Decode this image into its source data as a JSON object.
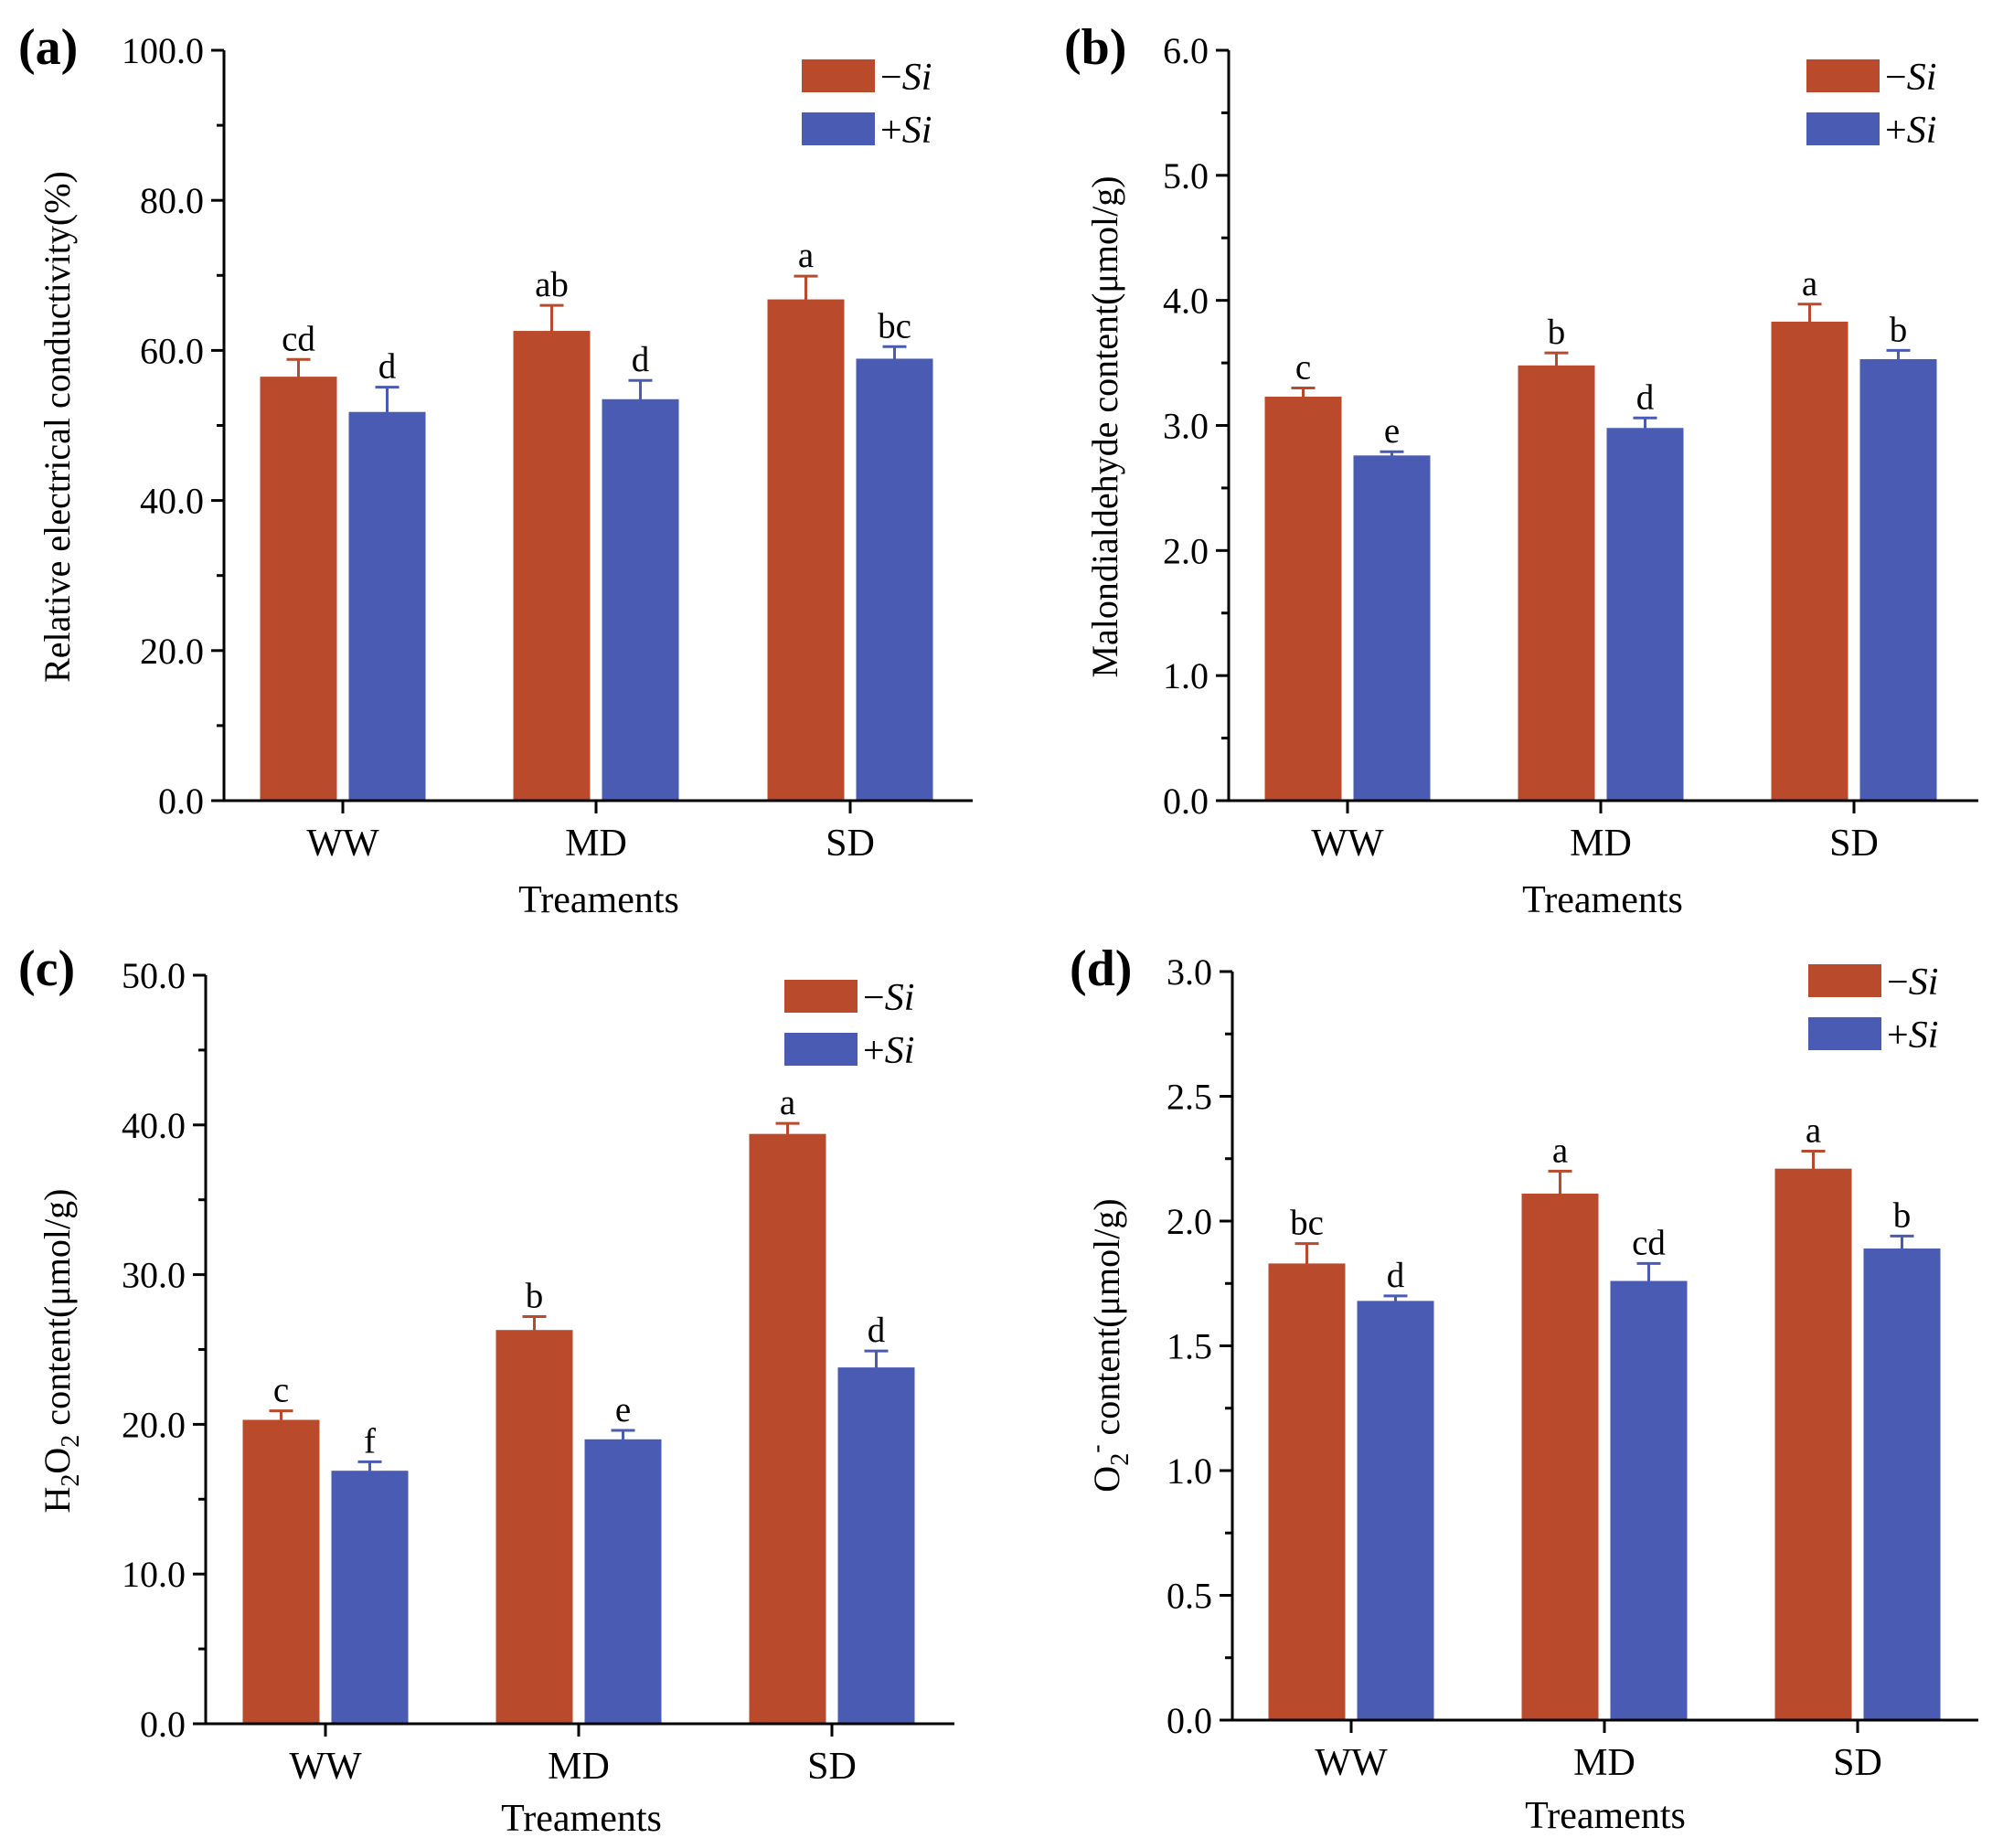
{
  "figure": {
    "legend": {
      "minus_si": {
        "sign": "−",
        "label": "Si",
        "color": "#B94A2C"
      },
      "plus_si": {
        "sign": "+",
        "label": "Si",
        "color": "#4A5BB4"
      }
    },
    "xlabel": "Treaments"
  },
  "chart_data": [
    {
      "panel": "(a)",
      "type": "bar",
      "categories": [
        "WW",
        "MD",
        "SD"
      ],
      "series": [
        {
          "name": "−Si",
          "color": "#B94A2C",
          "values": [
            56.5,
            62.6,
            66.8
          ],
          "errors": [
            2.3,
            3.4,
            3.1
          ],
          "letters": [
            "cd",
            "ab",
            "a"
          ]
        },
        {
          "name": "+Si",
          "color": "#4A5BB4",
          "values": [
            51.8,
            53.5,
            58.9
          ],
          "errors": [
            3.3,
            2.5,
            1.6
          ],
          "letters": [
            "d",
            "d",
            "bc"
          ]
        }
      ],
      "xlabel": "Treaments",
      "ylabel": "Relative electrical conductivity(%)",
      "ylim": [
        0,
        100
      ],
      "yticks": [
        "0.0",
        "20.0",
        "40.0",
        "60.0",
        "80.0",
        "100.0"
      ],
      "ytick_values": [
        0,
        20,
        40,
        60,
        80,
        100
      ]
    },
    {
      "panel": "(b)",
      "type": "bar",
      "categories": [
        "WW",
        "MD",
        "SD"
      ],
      "series": [
        {
          "name": "−Si",
          "color": "#B94A2C",
          "values": [
            3.23,
            3.48,
            3.83
          ],
          "errors": [
            0.07,
            0.1,
            0.14
          ],
          "letters": [
            "c",
            "b",
            "a"
          ]
        },
        {
          "name": "+Si",
          "color": "#4A5BB4",
          "values": [
            2.76,
            2.98,
            3.53
          ],
          "errors": [
            0.03,
            0.08,
            0.07
          ],
          "letters": [
            "e",
            "d",
            "b"
          ]
        }
      ],
      "xlabel": "Treaments",
      "ylabel": "Malondialdehyde content(μmol/g)",
      "ylim": [
        0,
        6
      ],
      "yticks": [
        "0.0",
        "1.0",
        "2.0",
        "3.0",
        "4.0",
        "5.0",
        "6.0"
      ],
      "ytick_values": [
        0,
        1,
        2,
        3,
        4,
        5,
        6
      ]
    },
    {
      "panel": "(c)",
      "type": "bar",
      "categories": [
        "WW",
        "MD",
        "SD"
      ],
      "series": [
        {
          "name": "−Si",
          "color": "#B94A2C",
          "values": [
            20.3,
            26.3,
            39.4
          ],
          "errors": [
            0.6,
            0.9,
            0.7
          ],
          "letters": [
            "c",
            "b",
            "a"
          ]
        },
        {
          "name": "+Si",
          "color": "#4A5BB4",
          "values": [
            16.9,
            19.0,
            23.8
          ],
          "errors": [
            0.6,
            0.6,
            1.1
          ],
          "letters": [
            "f",
            "e",
            "d"
          ]
        }
      ],
      "xlabel": "Treaments",
      "ylabel_main": "H",
      "ylabel_sub1": "2",
      "ylabel_mid": "O",
      "ylabel_sub2": "2",
      "ylabel_rest": " content(μmol/g)",
      "ylim": [
        0,
        50
      ],
      "yticks": [
        "0.0",
        "10.0",
        "20.0",
        "30.0",
        "40.0",
        "50.0"
      ],
      "ytick_values": [
        0,
        10,
        20,
        30,
        40,
        50
      ]
    },
    {
      "panel": "(d)",
      "type": "bar",
      "categories": [
        "WW",
        "MD",
        "SD"
      ],
      "series": [
        {
          "name": "−Si",
          "color": "#B94A2C",
          "values": [
            1.83,
            2.11,
            2.21
          ],
          "errors": [
            0.08,
            0.09,
            0.07
          ],
          "letters": [
            "bc",
            "a",
            "a"
          ]
        },
        {
          "name": "+Si",
          "color": "#4A5BB4",
          "values": [
            1.68,
            1.76,
            1.89
          ],
          "errors": [
            0.02,
            0.07,
            0.05
          ],
          "letters": [
            "d",
            "cd",
            "b"
          ]
        }
      ],
      "xlabel": "Treaments",
      "ylabel_main": "O",
      "ylabel_sub1": "2",
      "ylabel_sup": "-",
      "ylabel_rest": " content(μmol/g)",
      "ylim": [
        0,
        3
      ],
      "yticks": [
        "0.0",
        "0.5",
        "1.0",
        "1.5",
        "2.0",
        "2.5",
        "3.0"
      ],
      "ytick_values": [
        0,
        0.5,
        1,
        1.5,
        2,
        2.5,
        3
      ]
    }
  ]
}
